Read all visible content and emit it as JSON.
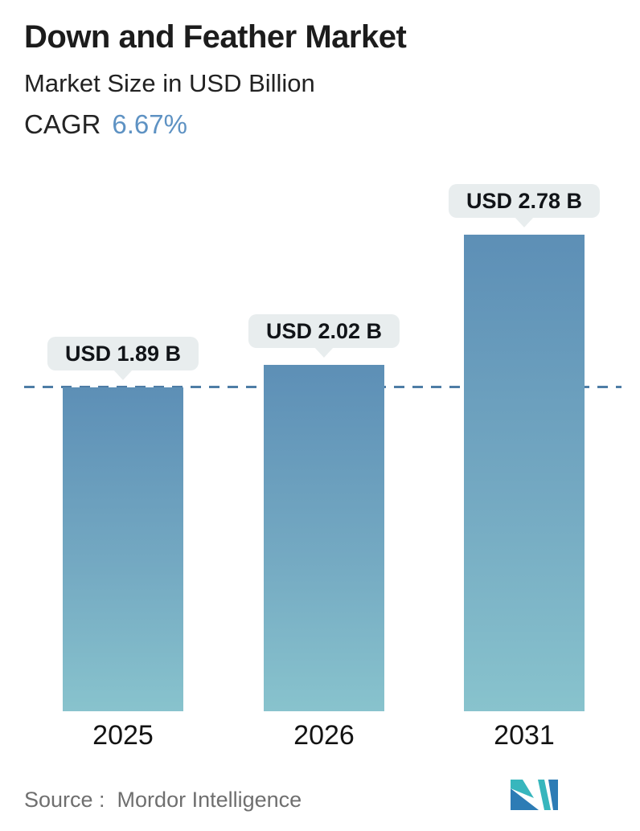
{
  "header": {
    "title": "Down and Feather Market",
    "subtitle": "Market Size in USD Billion",
    "cagr_label": "CAGR",
    "cagr_value": "6.67%"
  },
  "chart_data": {
    "type": "bar",
    "title": "Down and Feather Market",
    "subtitle": "Market Size in USD Billion",
    "cagr": "6.67%",
    "unit": "USD Billion",
    "categories": [
      "2025",
      "2026",
      "2031"
    ],
    "values": [
      1.89,
      2.02,
      2.78
    ],
    "value_labels": [
      "USD 1.89 B",
      "USD 2.02 B",
      "USD 2.78 B"
    ],
    "ylim": [
      0,
      3.1
    ],
    "grid": "off",
    "legend": "none",
    "reference_line": {
      "value": 1.89,
      "style": "dashed",
      "color": "#4e7da6"
    },
    "bar_gradient_top": "#5d8fb6",
    "bar_gradient_bottom": "#88c3cd",
    "label_bubble_bg": "#e8edee"
  },
  "footer": {
    "source_text": "Source :  Mordor Intelligence",
    "logo": "mordor-intelligence-logo"
  },
  "colors": {
    "background": "#ffffff",
    "text_dark": "#1c1c1c",
    "cagr_blue": "#5e92c3",
    "source_gray": "#6f6f6f",
    "dashed_line": "#4e7da6",
    "bubble_bg": "#e8edee",
    "bar_top": "#5d8fb6",
    "bar_bottom": "#88c3cd",
    "logo_teal": "#37b6bd",
    "logo_blue": "#2d7cb5"
  }
}
